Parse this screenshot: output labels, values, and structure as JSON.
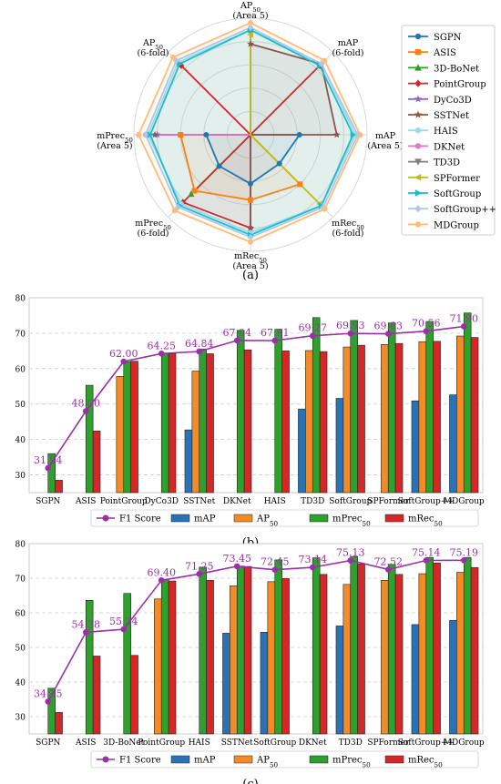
{
  "colors": {
    "mAP": "#2a72b6",
    "AP50": "#f58b27",
    "mPrec50": "#2ea02c",
    "mRec50": "#d62728",
    "f1": "#9a2fa8"
  },
  "chart_data": [
    {
      "type": "radar",
      "caption": "(a)",
      "axes": [
        {
          "top": "AP50",
          "bottom": "(Area 5)"
        },
        {
          "top": "mAP",
          "bottom": "(6-fold)"
        },
        {
          "top": "mAP",
          "bottom": "(Area 5)"
        },
        {
          "top": "mRec50",
          "bottom": "(6-fold)"
        },
        {
          "top": "mRec50",
          "bottom": "(Area 5)"
        },
        {
          "top": "mPrec50",
          "bottom": "(6-fold)"
        },
        {
          "top": "mPrec50",
          "bottom": "(Area 5)"
        },
        {
          "top": "AP50",
          "bottom": "(6-fold)"
        }
      ],
      "series": [
        {
          "name": "SGPN",
          "color": "#1f77b4",
          "marker": "circle",
          "values": [
            null,
            null,
            0.42,
            0.35,
            0.42,
            0.38,
            0.38,
            null
          ]
        },
        {
          "name": "ASIS",
          "color": "#ff7f0e",
          "marker": "square",
          "values": [
            null,
            null,
            null,
            0.6,
            0.56,
            0.68,
            0.6,
            null
          ]
        },
        {
          "name": "3D-BoNet",
          "color": "#2ca02c",
          "marker": "triangle",
          "values": [
            null,
            null,
            null,
            null,
            null,
            0.72,
            null,
            null
          ]
        },
        {
          "name": "PointGroup",
          "color": "#d62728",
          "marker": "diamond",
          "values": [
            null,
            0.84,
            null,
            null,
            0.8,
            0.82,
            null,
            0.84
          ]
        },
        {
          "name": "DyCo3D",
          "color": "#9467bd",
          "marker": "star",
          "values": [
            null,
            null,
            null,
            null,
            0.8,
            null,
            0.8,
            null
          ]
        },
        {
          "name": "SSTNet",
          "color": "#8c564b",
          "marker": "star",
          "values": [
            0.78,
            0.86,
            0.74,
            null,
            0.8,
            null,
            0.82,
            null
          ]
        },
        {
          "name": "HAIS",
          "color": "#9edae5",
          "marker": "circle",
          "values": [
            0.9,
            0.86,
            0.9,
            0.86,
            0.84,
            0.84,
            0.88,
            0.88
          ]
        },
        {
          "name": "DKNet",
          "color": "#e377c2",
          "marker": "circle",
          "values": [
            null,
            null,
            null,
            null,
            null,
            null,
            0.9,
            null
          ]
        },
        {
          "name": "TD3D",
          "color": "#7f7f7f",
          "marker": "triangle-down",
          "values": [
            0.88,
            null,
            null,
            null,
            null,
            null,
            null,
            null
          ]
        },
        {
          "name": "SPFormer",
          "color": "#bcbd22",
          "marker": "triangle-left",
          "values": [
            0.86,
            null,
            null,
            0.84,
            null,
            null,
            null,
            null
          ]
        },
        {
          "name": "SoftGroup",
          "color": "#17becf",
          "marker": "triangle-right",
          "values": [
            0.9,
            0.84,
            0.88,
            0.86,
            0.86,
            0.86,
            0.86,
            0.86
          ]
        },
        {
          "name": "SoftGroup++",
          "color": "#aec7e8",
          "marker": "diamond",
          "values": [
            0.92,
            0.86,
            0.92,
            0.88,
            0.88,
            0.88,
            0.9,
            0.9
          ]
        },
        {
          "name": "MDGroup",
          "color": "#ffbb78",
          "marker": "circle",
          "values": [
            0.96,
            0.9,
            0.94,
            0.9,
            0.92,
            0.92,
            0.96,
            0.94
          ]
        }
      ]
    },
    {
      "type": "bar",
      "caption": "(b)",
      "categories": [
        "SGPN",
        "ASIS",
        "PointGroup",
        "DyCo3D",
        "SSTNet",
        "DKNet",
        "HAIS",
        "TD3D",
        "SoftGroup",
        "SPFormer",
        "SoftGroup++",
        "MDGroup"
      ],
      "ylim": [
        25,
        80
      ],
      "yticks": [
        30,
        40,
        50,
        60,
        70,
        80
      ],
      "series": [
        {
          "name": "mAP",
          "values": [
            null,
            null,
            null,
            null,
            42.7,
            null,
            null,
            48.6,
            51.6,
            null,
            50.9,
            52.6
          ]
        },
        {
          "name": "AP50",
          "values": [
            null,
            null,
            57.8,
            null,
            59.3,
            null,
            null,
            65.1,
            66.1,
            66.8,
            67.6,
            69.2
          ]
        },
        {
          "name": "mPrec50",
          "values": [
            36.0,
            55.3,
            61.9,
            64.3,
            65.5,
            70.8,
            71.1,
            74.4,
            73.6,
            72.9,
            73.3,
            75.7
          ]
        },
        {
          "name": "mRec50",
          "values": [
            28.5,
            42.4,
            62.1,
            64.2,
            64.2,
            65.3,
            65.0,
            64.8,
            66.6,
            67.1,
            67.7,
            68.8
          ]
        }
      ],
      "f1": {
        "name": "F1 Score",
        "values": [
          31.94,
          48.0,
          62.0,
          64.25,
          64.84,
          67.94,
          67.91,
          69.27,
          69.93,
          69.83,
          70.56,
          71.9
        ],
        "labels": [
          "31.94",
          "48.00",
          "62.00",
          "64.25",
          "64.84",
          "67.94",
          "67.91",
          "69.27",
          "69.93",
          "69.83",
          "70.56",
          "71.90"
        ]
      }
    },
    {
      "type": "bar",
      "caption": "(c)",
      "categories": [
        "SGPN",
        "ASIS",
        "3D-BoNet",
        "PointGroup",
        "HAIS",
        "SSTNet",
        "SoftGroup",
        "DKNet",
        "TD3D",
        "SPFormer",
        "SoftGroup++",
        "MDGroup"
      ],
      "ylim": [
        25,
        80
      ],
      "yticks": [
        30,
        40,
        50,
        60,
        70,
        80
      ],
      "series": [
        {
          "name": "mAP",
          "values": [
            null,
            null,
            null,
            null,
            null,
            54.1,
            54.4,
            null,
            56.2,
            null,
            56.6,
            57.8
          ]
        },
        {
          "name": "AP50",
          "values": [
            null,
            null,
            null,
            64.0,
            null,
            67.8,
            69.0,
            null,
            68.2,
            69.4,
            71.3,
            71.7
          ]
        },
        {
          "name": "mPrec50",
          "values": [
            38.2,
            63.6,
            65.6,
            69.6,
            73.2,
            73.5,
            75.3,
            75.9,
            76.3,
            74.0,
            76.0,
            76.0
          ]
        },
        {
          "name": "mRec50",
          "values": [
            31.2,
            47.5,
            47.7,
            69.2,
            69.4,
            73.4,
            69.9,
            71.1,
            74.1,
            71.1,
            74.4,
            73.1
          ]
        }
      ],
      "f1": {
        "name": "F1 Score",
        "values": [
          34.35,
          54.38,
          55.24,
          69.4,
          71.25,
          73.45,
          72.45,
          73.14,
          75.13,
          72.52,
          75.14,
          75.19
        ],
        "labels": [
          "34.35",
          "54.38",
          "55.24",
          "69.40",
          "71.25",
          "73.45",
          "72.45",
          "73.14",
          "75.13",
          "72.52",
          "75.14",
          "75.19"
        ]
      }
    }
  ]
}
